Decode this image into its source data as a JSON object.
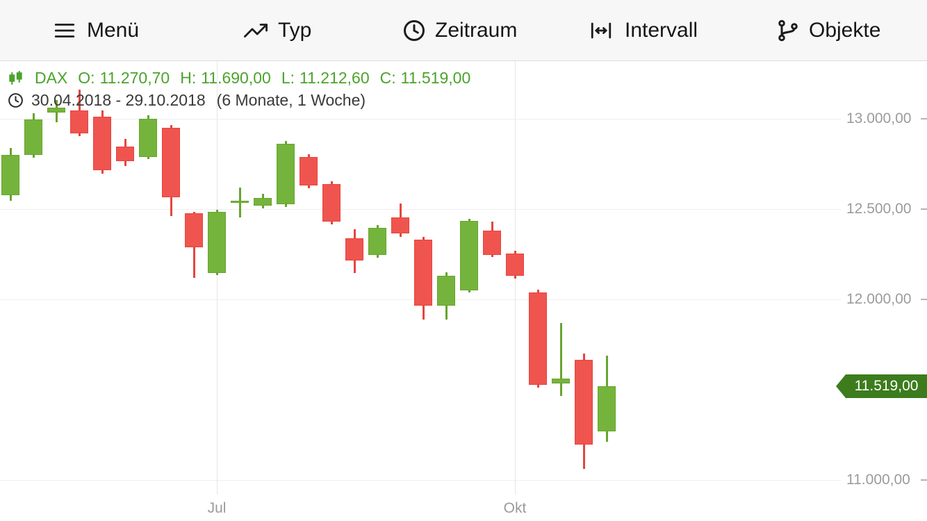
{
  "toolbar": {
    "items": [
      {
        "label": "Menü",
        "icon": "menu-icon"
      },
      {
        "label": "Typ",
        "icon": "chart-type-icon"
      },
      {
        "label": "Zeitraum",
        "icon": "clock-icon"
      },
      {
        "label": "Intervall",
        "icon": "interval-icon"
      },
      {
        "label": "Objekte",
        "icon": "objects-icon"
      }
    ]
  },
  "legend": {
    "symbol": "DAX",
    "ohlc": [
      {
        "label": "O:",
        "value": "11.270,70"
      },
      {
        "label": "H:",
        "value": "11.690,00"
      },
      {
        "label": "L:",
        "value": "11.212,60"
      },
      {
        "label": "C:",
        "value": "11.519,00"
      }
    ],
    "date_range": "30.04.2018 - 29.10.2018",
    "interval_info": "(6 Monate, 1 Woche)"
  },
  "price_tag": {
    "value": "11.519,00"
  },
  "colors": {
    "up": "#75b43c",
    "up_border": "#66a52e",
    "down": "#f0544e",
    "down_border": "#e6453f",
    "text_green": "#4ba32b",
    "axis_text": "#9b9b9b",
    "tag_bg": "#3c7c1d"
  },
  "chart_data": {
    "type": "candlestick",
    "title": "DAX",
    "date_range": "30.04.2018 - 29.10.2018",
    "interval": "1 Woche",
    "ylim": [
      10919,
      13319
    ],
    "y_ticks": [
      {
        "price": 13000,
        "label": "13.000,00"
      },
      {
        "price": 12500,
        "label": "12.500,00"
      },
      {
        "price": 12000,
        "label": "12.000,00"
      },
      {
        "price": 11000,
        "label": "11.000,00"
      }
    ],
    "x_ticks": [
      {
        "index": 9,
        "label": "Jul"
      },
      {
        "index": 22,
        "label": "Okt"
      }
    ],
    "last_price": 11519,
    "columns": [
      "open",
      "high",
      "low",
      "close"
    ],
    "candles": [
      [
        12575,
        12840,
        12545,
        12800
      ],
      [
        12800,
        13030,
        12785,
        12995
      ],
      [
        13035,
        13105,
        12980,
        13060
      ],
      [
        13045,
        13160,
        12905,
        12920
      ],
      [
        13010,
        13045,
        12695,
        12715
      ],
      [
        12845,
        12890,
        12740,
        12765
      ],
      [
        12790,
        13020,
        12775,
        13000
      ],
      [
        12950,
        12965,
        12460,
        12565
      ],
      [
        12475,
        12485,
        12120,
        12290
      ],
      [
        12145,
        12495,
        12135,
        12485
      ],
      [
        12535,
        12620,
        12455,
        12545
      ],
      [
        12520,
        12585,
        12505,
        12560
      ],
      [
        12525,
        12875,
        12510,
        12860
      ],
      [
        12790,
        12805,
        12615,
        12630
      ],
      [
        12640,
        12655,
        12415,
        12430
      ],
      [
        12340,
        12390,
        12145,
        12215
      ],
      [
        12245,
        12410,
        12230,
        12395
      ],
      [
        12455,
        12530,
        12345,
        12365
      ],
      [
        12330,
        12345,
        11890,
        11965
      ],
      [
        11965,
        12150,
        11890,
        12130
      ],
      [
        12050,
        12445,
        12040,
        12435
      ],
      [
        12380,
        12430,
        12235,
        12245
      ],
      [
        12255,
        12270,
        12115,
        12130
      ],
      [
        12040,
        12055,
        11510,
        11525
      ],
      [
        11535,
        11870,
        11465,
        11560
      ],
      [
        11665,
        11700,
        11060,
        11195
      ],
      [
        11270.7,
        11690,
        11212.6,
        11519
      ]
    ]
  }
}
